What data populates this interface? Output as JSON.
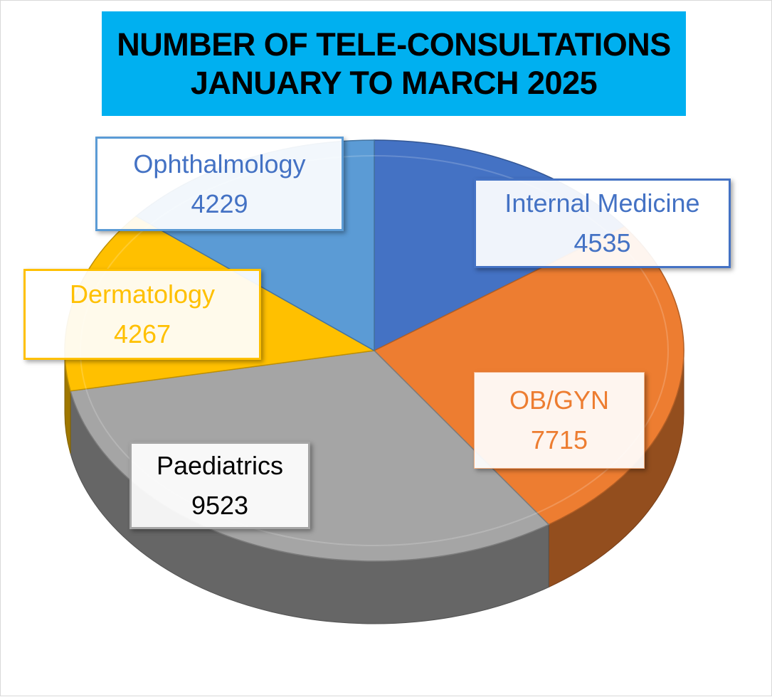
{
  "title_line1": "NUMBER OF TELE-CONSULTATIONS",
  "title_line2": "JANUARY TO MARCH 2025",
  "chart_data": {
    "type": "pie",
    "title": "NUMBER OF TELE-CONSULTATIONS JANUARY TO MARCH 2025",
    "style": "3d",
    "legend": "none",
    "slices": [
      {
        "name": "Internal Medicine",
        "value": 4535,
        "color": "#4472c4"
      },
      {
        "name": "OB/GYN",
        "value": 7715,
        "color": "#ed7d31"
      },
      {
        "name": "Paediatrics",
        "value": 9523,
        "color": "#a5a5a5"
      },
      {
        "name": "Dermatology",
        "value": 4267,
        "color": "#ffc000"
      },
      {
        "name": "Ophthalmology",
        "value": 4229,
        "color": "#5b9bd5"
      }
    ],
    "label_text_colors": [
      "#4472c4",
      "#ed7d31",
      "#000000",
      "#ffc000",
      "#4472c4"
    ]
  }
}
